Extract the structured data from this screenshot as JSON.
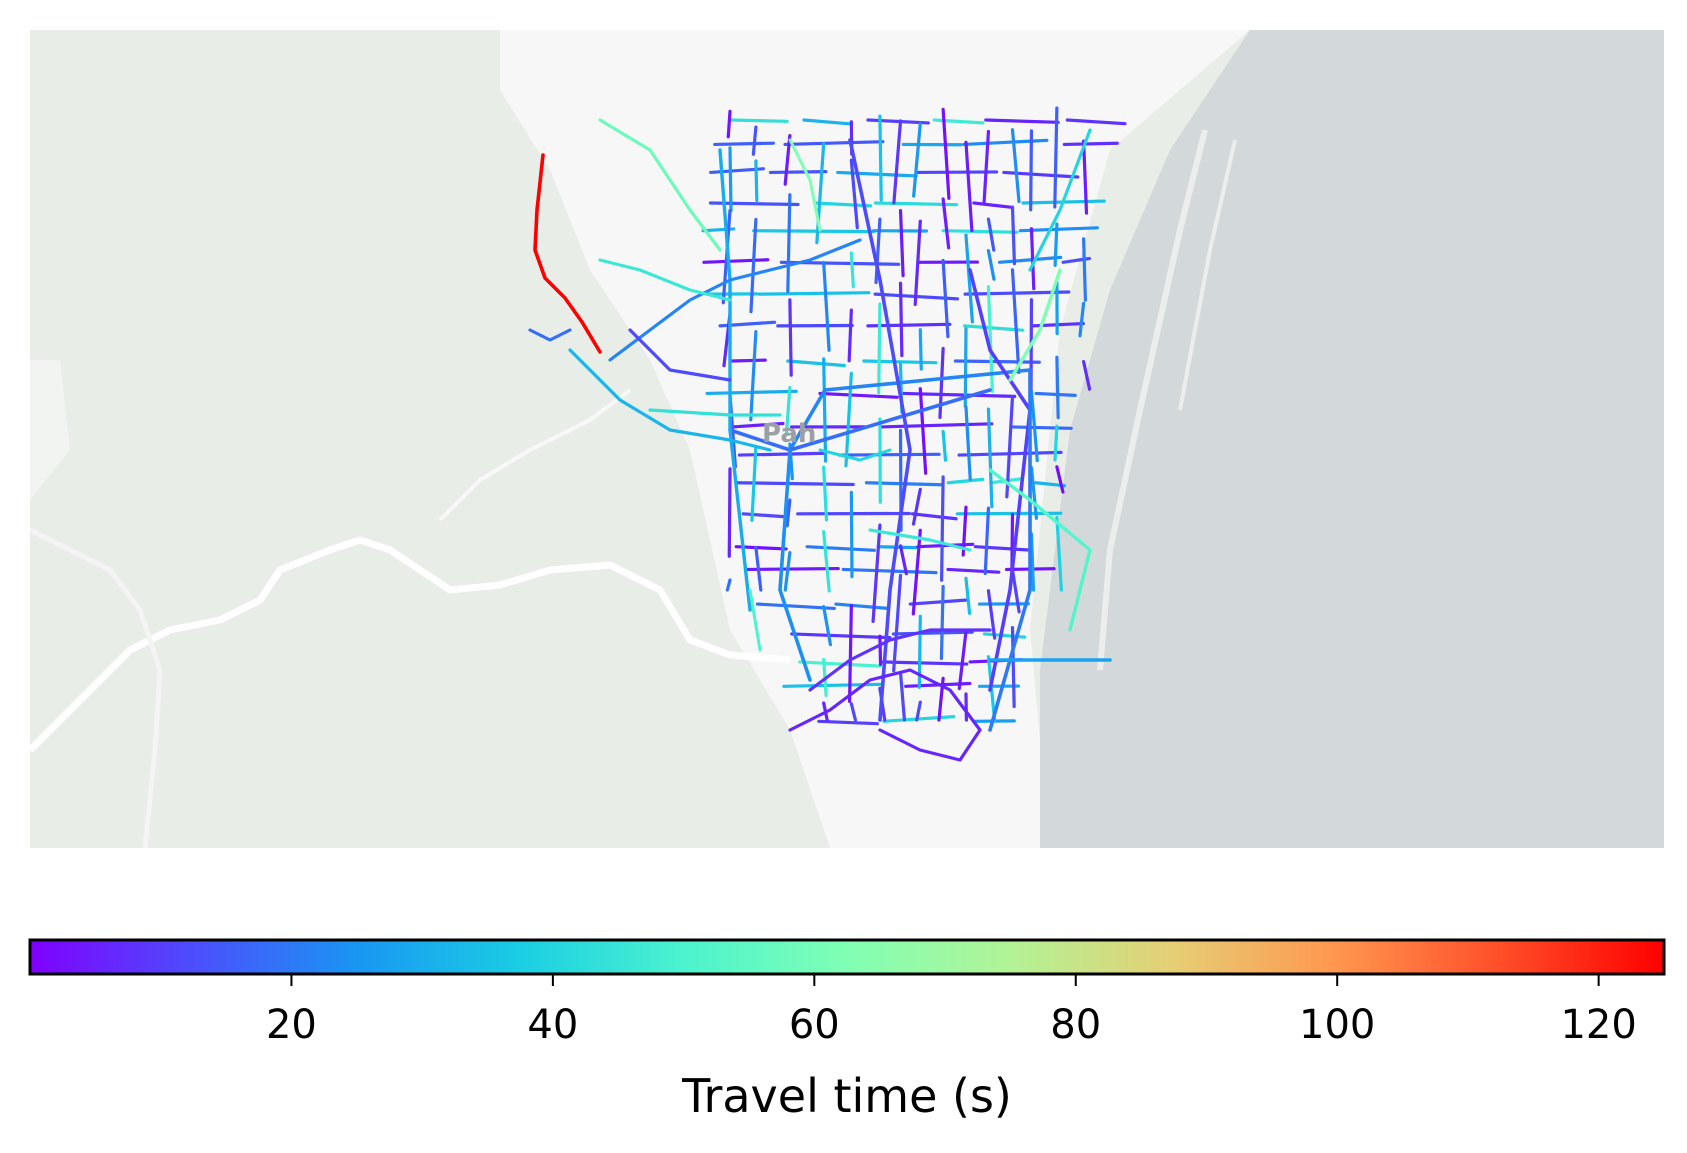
{
  "map": {
    "labels": [
      "Pah"
    ],
    "colors": {
      "land": "#e8ede8",
      "urban": "#f6f7f6",
      "water": "#d3d8db",
      "path": "#ffffff"
    }
  },
  "colorbar": {
    "title": "Travel time (s)",
    "min": 0,
    "max": 125,
    "ticks": [
      20,
      40,
      60,
      80,
      100,
      120
    ],
    "colormap": "rainbow"
  },
  "chart_data": {
    "type": "map-network",
    "metric": "Travel time (s)",
    "value_range": [
      0,
      125
    ],
    "colorbar_ticks": [
      20,
      40,
      60,
      80,
      100,
      120
    ],
    "max_segment_value": 125
  }
}
